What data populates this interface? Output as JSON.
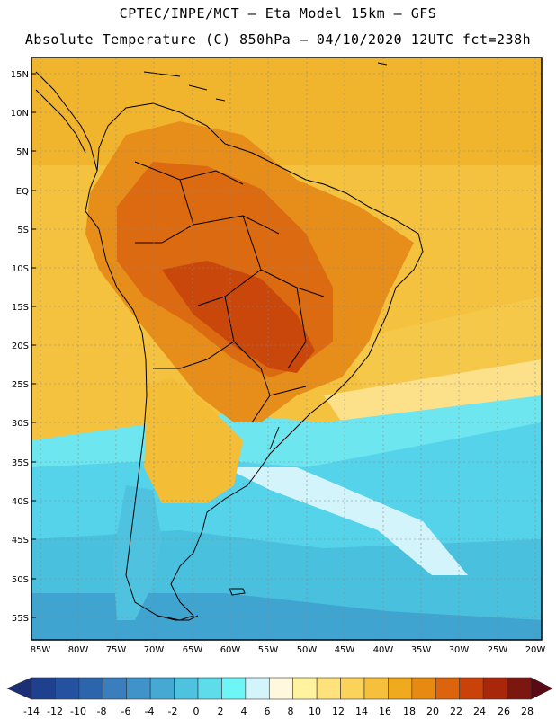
{
  "header": {
    "line1": "CPTEC/INPE/MCT –  Eta Model 15km – GFS",
    "line2": "Absolute Temperature (C) 850hPa – 04/10/2020 12UTC fct=238h"
  },
  "map": {
    "lat_labels": [
      "15N",
      "10N",
      "5N",
      "EQ",
      "5S",
      "10S",
      "15S",
      "20S",
      "25S",
      "30S",
      "35S",
      "40S",
      "45S",
      "50S",
      "55S"
    ],
    "lon_labels": [
      "85W",
      "80W",
      "75W",
      "70W",
      "65W",
      "60W",
      "55W",
      "50W",
      "45W",
      "40W",
      "35W",
      "30W",
      "25W",
      "20W"
    ],
    "land_outline_color": "#000000",
    "grid_color": "#888888"
  },
  "colorbar": {
    "labels": [
      "-14",
      "-12",
      "-10",
      "-8",
      "-6",
      "-4",
      "-2",
      "0",
      "2",
      "4",
      "6",
      "8",
      "10",
      "12",
      "14",
      "16",
      "18",
      "20",
      "22",
      "24",
      "26",
      "28"
    ],
    "colors": [
      "#1f3f8f",
      "#24529f",
      "#2d65ad",
      "#3a7ebd",
      "#3f93c8",
      "#45a9d4",
      "#4fc2e0",
      "#5fdcea",
      "#6ef5f5",
      "#d4f4fb",
      "#fff8df",
      "#fff3a0",
      "#ffe27c",
      "#fcd35a",
      "#f6c03d",
      "#f0aa1d",
      "#e68a12",
      "#dd640d",
      "#c9420a",
      "#a8260a",
      "#7c1710",
      "#5a0a14"
    ],
    "min_arrow_color": "#1a2f75",
    "max_arrow_color": "#5a0a14"
  }
}
